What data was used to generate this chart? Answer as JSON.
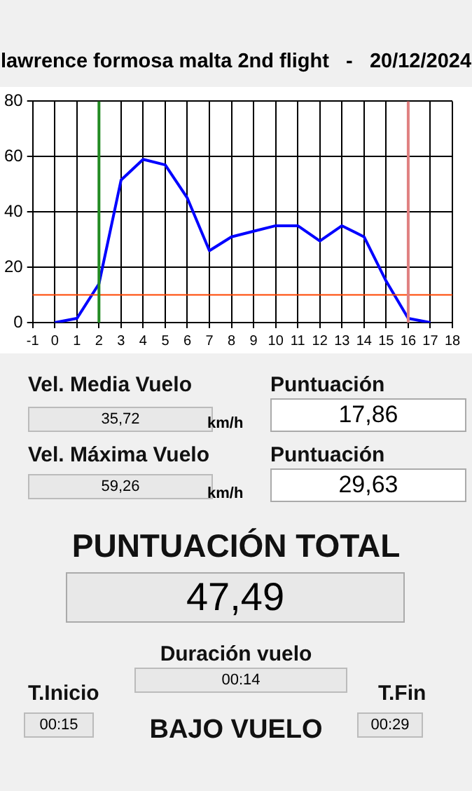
{
  "chart_data": {
    "type": "line",
    "title": "lawrence formosa malta 2nd flight   -   20/12/2024",
    "x": [
      0,
      1,
      2,
      3,
      4,
      5,
      6,
      7,
      8,
      9,
      10,
      11,
      12,
      13,
      14,
      15,
      16,
      17
    ],
    "series": [
      {
        "color": "#0000ff",
        "values": [
          0,
          1.5,
          14,
          51.5,
          59,
          57,
          45,
          26,
          31,
          33,
          35,
          35,
          29.5,
          35,
          31,
          15,
          1.5,
          0
        ]
      }
    ],
    "xlim": [
      -1,
      18
    ],
    "xticks": [
      -1,
      0,
      1,
      2,
      3,
      4,
      5,
      6,
      7,
      8,
      9,
      10,
      11,
      12,
      13,
      14,
      15,
      16,
      17,
      18
    ],
    "ylim": [
      0,
      80
    ],
    "yticks": [
      0,
      20,
      40,
      60,
      80
    ],
    "grid": true,
    "legend": false,
    "marker": "none",
    "line_style": "solid",
    "ref_lines": [
      {
        "axis": "y",
        "value": 10,
        "color": "#ff4500"
      },
      {
        "axis": "x",
        "value": 2,
        "color": "#228b22"
      },
      {
        "axis": "x",
        "value": 16,
        "color": "#e08080"
      }
    ],
    "annotations": [
      "Vel. Media Vuelo",
      "35,72",
      "km/h",
      "Puntuación",
      "17,86",
      "Vel. Máxima Vuelo",
      "59,26",
      "km/h",
      "Puntuación",
      "29,63",
      "PUNTUACIÓN TOTAL",
      "47,49",
      "Duración vuelo",
      "00:14",
      "T.Inicio",
      "00:15",
      "BAJO VUELO",
      "T.Fin",
      "00:29"
    ]
  }
}
